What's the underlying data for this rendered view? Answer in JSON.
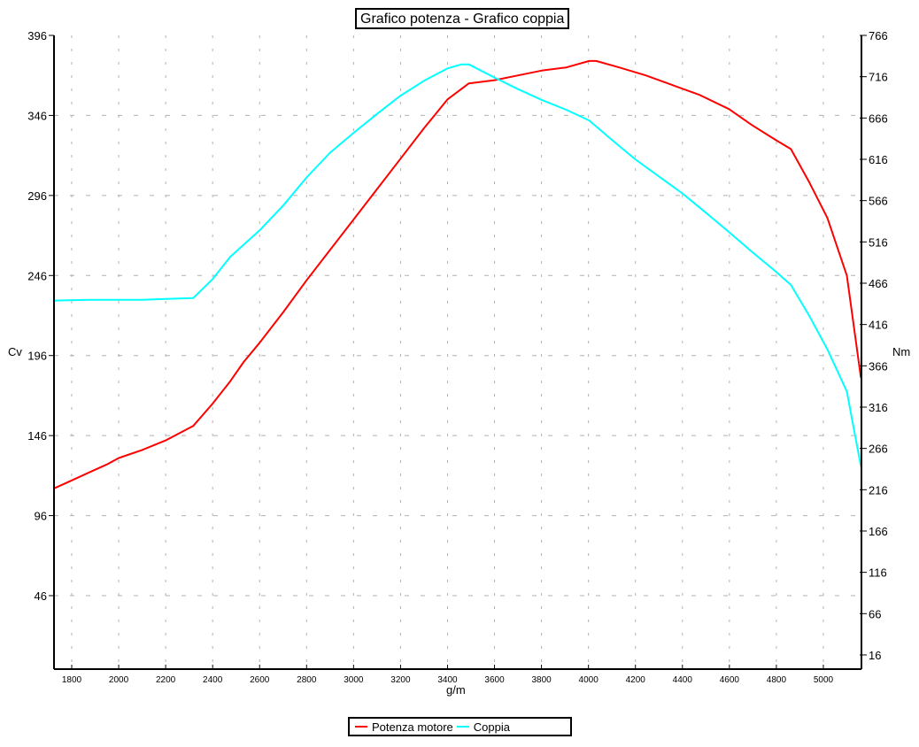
{
  "chart_data": {
    "type": "line",
    "title": "Grafico potenza - Grafico coppia",
    "xlabel": "g/m",
    "ylabel": "Cv",
    "y2label": "Nm",
    "xlim": [
      1725,
      5165
    ],
    "ylim": [
      16,
      396
    ],
    "y2lim": [
      -1,
      766
    ],
    "xticks": [
      1800,
      2000,
      2200,
      2400,
      2600,
      2800,
      3000,
      3200,
      3400,
      3600,
      3800,
      4000,
      4200,
      4400,
      4600,
      4800,
      5000
    ],
    "yticks": [
      396,
      346,
      296,
      246,
      196,
      146,
      96,
      46
    ],
    "y2ticks": [
      766,
      716,
      666,
      616,
      566,
      516,
      466,
      416,
      366,
      316,
      266,
      216,
      166,
      116,
      66,
      16
    ],
    "grid": true,
    "legend_position": "bottom",
    "series": [
      {
        "name": "Potenza motore",
        "axis": "left",
        "color": "#ff0000",
        "x": [
          1725,
          1800,
          1875,
          1950,
          2000,
          2100,
          2200,
          2317,
          2400,
          2475,
          2532,
          2600,
          2700,
          2800,
          2900,
          3000,
          3100,
          3200,
          3300,
          3400,
          3490,
          3600,
          3700,
          3800,
          3905,
          4003,
          4033,
          4131,
          4244,
          4357,
          4470,
          4598,
          4696,
          4794,
          4862,
          4941,
          5017,
          5100,
          5160
        ],
        "values": [
          113,
          118,
          123,
          128,
          132,
          137,
          143,
          152,
          166,
          180,
          192,
          204,
          223,
          243,
          262,
          281,
          300,
          319,
          338,
          356,
          366,
          368,
          371,
          374,
          376,
          380,
          380,
          376,
          371,
          365,
          359,
          350,
          340,
          331,
          325,
          304,
          282,
          246,
          182
        ]
      },
      {
        "name": "Coppia",
        "axis": "right",
        "color": "#00ffff",
        "x": [
          1725,
          1875,
          2100,
          2200,
          2317,
          2400,
          2475,
          2600,
          2700,
          2800,
          2900,
          3000,
          3100,
          3200,
          3300,
          3400,
          3460,
          3490,
          3600,
          3700,
          3800,
          3905,
          4003,
          4094,
          4199,
          4301,
          4399,
          4497,
          4598,
          4696,
          4794,
          4862,
          4941,
          5017,
          5100,
          5160
        ],
        "values": [
          445,
          446,
          446,
          447,
          448,
          471,
          498,
          530,
          560,
          594,
          624,
          648,
          671,
          693,
          711,
          726,
          731,
          731,
          715,
          701,
          688,
          676,
          663,
          641,
          616,
          595,
          575,
          552,
          528,
          504,
          481,
          464,
          426,
          386,
          335,
          244
        ]
      }
    ]
  },
  "header": {
    "title": "Grafico potenza - Grafico coppia"
  },
  "axes": {
    "x_label": "g/m",
    "y_left_label": "Cv",
    "y_right_label": "Nm"
  },
  "legend": {
    "items": [
      {
        "label": "Potenza motore",
        "color": "#ff0000"
      },
      {
        "label": "Coppia",
        "color": "#00ffff"
      }
    ]
  },
  "colors": {
    "power": "#ff0000",
    "torque": "#00ffff",
    "grid": "#b0b0b0",
    "axis": "#000000"
  }
}
